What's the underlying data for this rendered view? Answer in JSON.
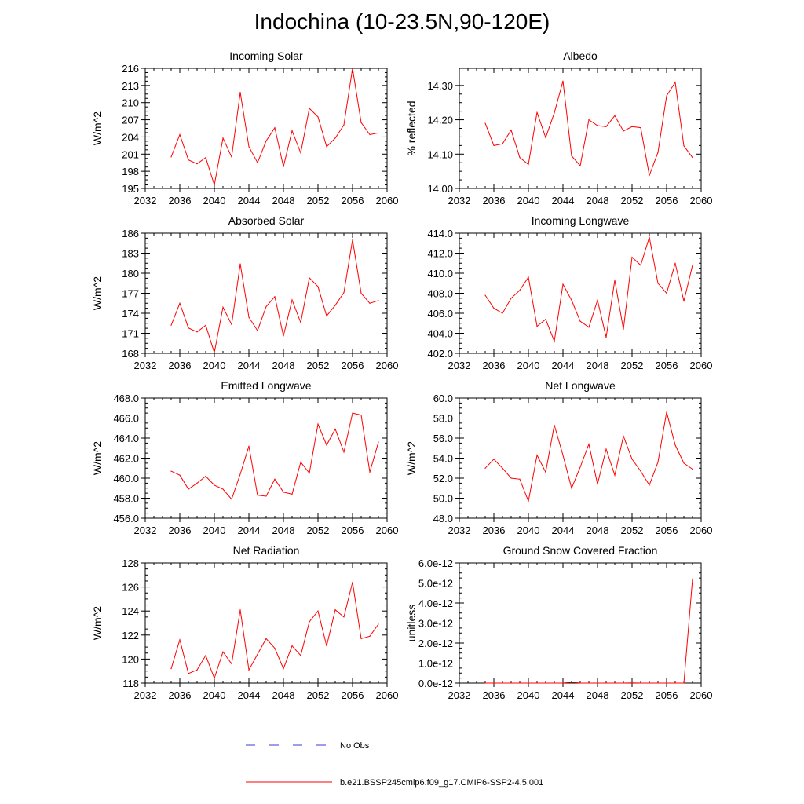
{
  "title": "Indochina (10-23.5N,90-120E)",
  "legend": {
    "obs_label": "No Obs",
    "model_label": "b.e21.BSSP245cmip6.f09_g17.CMIP6-SSP2-4.5.001",
    "obs_color": "#3b3bd9",
    "model_color": "#ff0000"
  },
  "chart_data": [
    {
      "type": "line",
      "title": "Incoming Solar",
      "ylabel": "W/m^2",
      "xlim": [
        2032,
        2060
      ],
      "ylim": [
        195,
        216
      ],
      "xticks": [
        2032,
        2036,
        2040,
        2044,
        2048,
        2052,
        2056,
        2060
      ],
      "yticks": [
        195,
        198,
        201,
        204,
        207,
        210,
        213,
        216
      ],
      "ytick_labels": [
        "195",
        "198",
        "201",
        "204",
        "207",
        "210",
        "213",
        "216"
      ],
      "series": [
        {
          "name": "b.e21.BSSP245cmip6.f09_g17.CMIP6-SSP2-4.5.001",
          "x": [
            2035,
            2036,
            2037,
            2038,
            2039,
            2040,
            2041,
            2042,
            2043,
            2044,
            2045,
            2046,
            2047,
            2048,
            2049,
            2050,
            2051,
            2052,
            2053,
            2054,
            2055,
            2056,
            2057,
            2058,
            2059
          ],
          "y": [
            200.5,
            204.4,
            200.0,
            199.3,
            200.4,
            195.6,
            203.8,
            200.5,
            211.8,
            202.3,
            199.5,
            203.3,
            205.6,
            198.8,
            205.1,
            201.2,
            209.0,
            207.5,
            202.3,
            203.8,
            206.1,
            216.0,
            206.5,
            204.4,
            204.7
          ]
        }
      ]
    },
    {
      "type": "line",
      "title": "Albedo",
      "ylabel": "% reflected",
      "xlim": [
        2032,
        2060
      ],
      "ylim": [
        14.0,
        14.35
      ],
      "xticks": [
        2032,
        2036,
        2040,
        2044,
        2048,
        2052,
        2056,
        2060
      ],
      "yticks": [
        14.0,
        14.1,
        14.2,
        14.3
      ],
      "ytick_labels": [
        "14.00",
        "14.10",
        "14.20",
        "14.30"
      ],
      "series": [
        {
          "name": "b.e21.BSSP245cmip6.f09_g17.CMIP6-SSP2-4.5.001",
          "x": [
            2035,
            2036,
            2037,
            2038,
            2039,
            2040,
            2041,
            2042,
            2043,
            2044,
            2045,
            2046,
            2047,
            2048,
            2049,
            2050,
            2051,
            2052,
            2053,
            2054,
            2055,
            2056,
            2057,
            2058,
            2059
          ],
          "y": [
            14.19,
            14.125,
            14.13,
            14.17,
            14.09,
            14.07,
            14.222,
            14.148,
            14.22,
            14.313,
            14.095,
            14.066,
            14.2,
            14.183,
            14.18,
            14.212,
            14.167,
            14.18,
            14.177,
            14.038,
            14.105,
            14.27,
            14.309,
            14.124,
            14.09
          ]
        }
      ]
    },
    {
      "type": "line",
      "title": "Absorbed Solar",
      "ylabel": "W/m^2",
      "xlim": [
        2032,
        2060
      ],
      "ylim": [
        168,
        186
      ],
      "xticks": [
        2032,
        2036,
        2040,
        2044,
        2048,
        2052,
        2056,
        2060
      ],
      "yticks": [
        168,
        171,
        174,
        177,
        180,
        183,
        186
      ],
      "ytick_labels": [
        "168",
        "171",
        "174",
        "177",
        "180",
        "183",
        "186"
      ],
      "series": [
        {
          "name": "b.e21.BSSP245cmip6.f09_g17.CMIP6-SSP2-4.5.001",
          "x": [
            2035,
            2036,
            2037,
            2038,
            2039,
            2040,
            2041,
            2042,
            2043,
            2044,
            2045,
            2046,
            2047,
            2048,
            2049,
            2050,
            2051,
            2052,
            2053,
            2054,
            2055,
            2056,
            2057,
            2058,
            2059
          ],
          "y": [
            172.2,
            175.5,
            171.8,
            171.2,
            172.2,
            168.1,
            174.9,
            172.3,
            181.4,
            173.4,
            171.4,
            175.0,
            176.5,
            170.6,
            176.0,
            172.6,
            179.3,
            178.0,
            173.6,
            175.2,
            177.1,
            185.0,
            177.0,
            175.5,
            175.9
          ]
        }
      ]
    },
    {
      "type": "line",
      "title": "Incoming Longwave",
      "ylabel": "",
      "xlim": [
        2032,
        2060
      ],
      "ylim": [
        402.0,
        414.0
      ],
      "xticks": [
        2032,
        2036,
        2040,
        2044,
        2048,
        2052,
        2056,
        2060
      ],
      "yticks": [
        402,
        404,
        406,
        408,
        410,
        412,
        414
      ],
      "ytick_labels": [
        "402.0",
        "404.0",
        "406.0",
        "408.0",
        "410.0",
        "412.0",
        "414.0"
      ],
      "series": [
        {
          "name": "b.e21.BSSP245cmip6.f09_g17.CMIP6-SSP2-4.5.001",
          "x": [
            2035,
            2036,
            2037,
            2038,
            2039,
            2040,
            2041,
            2042,
            2043,
            2044,
            2045,
            2046,
            2047,
            2048,
            2049,
            2050,
            2051,
            2052,
            2053,
            2054,
            2055,
            2056,
            2057,
            2058,
            2059
          ],
          "y": [
            407.8,
            406.5,
            406.0,
            407.5,
            408.3,
            409.6,
            404.7,
            405.4,
            403.2,
            408.9,
            407.3,
            405.2,
            404.6,
            407.3,
            403.6,
            409.3,
            404.4,
            411.6,
            410.8,
            413.6,
            409.0,
            408.0,
            411.0,
            407.2,
            410.8
          ]
        }
      ]
    },
    {
      "type": "line",
      "title": "Emitted Longwave",
      "ylabel": "W/m^2",
      "xlim": [
        2032,
        2060
      ],
      "ylim": [
        456.0,
        468.0
      ],
      "xticks": [
        2032,
        2036,
        2040,
        2044,
        2048,
        2052,
        2056,
        2060
      ],
      "yticks": [
        456,
        458,
        460,
        462,
        464,
        466,
        468
      ],
      "ytick_labels": [
        "456.0",
        "458.0",
        "460.0",
        "462.0",
        "464.0",
        "466.0",
        "468.0"
      ],
      "series": [
        {
          "name": "b.e21.BSSP245cmip6.f09_g17.CMIP6-SSP2-4.5.001",
          "x": [
            2035,
            2036,
            2037,
            2038,
            2039,
            2040,
            2041,
            2042,
            2043,
            2044,
            2045,
            2046,
            2047,
            2048,
            2049,
            2050,
            2051,
            2052,
            2053,
            2054,
            2055,
            2056,
            2057,
            2058,
            2059
          ],
          "y": [
            460.7,
            460.3,
            458.9,
            459.5,
            460.2,
            459.3,
            458.9,
            457.9,
            460.4,
            463.2,
            458.3,
            458.2,
            459.9,
            458.6,
            458.4,
            461.6,
            460.5,
            465.4,
            463.3,
            464.9,
            462.6,
            466.5,
            466.3,
            460.6,
            463.6
          ]
        }
      ]
    },
    {
      "type": "line",
      "title": "Net Longwave",
      "ylabel": "W/m^2",
      "xlim": [
        2032,
        2060
      ],
      "ylim": [
        48.0,
        60.0
      ],
      "xticks": [
        2032,
        2036,
        2040,
        2044,
        2048,
        2052,
        2056,
        2060
      ],
      "yticks": [
        48,
        50,
        52,
        54,
        56,
        58,
        60
      ],
      "ytick_labels": [
        "48.0",
        "50.0",
        "52.0",
        "54.0",
        "56.0",
        "58.0",
        "60.0"
      ],
      "series": [
        {
          "name": "b.e21.BSSP245cmip6.f09_g17.CMIP6-SSP2-4.5.001",
          "x": [
            2035,
            2036,
            2037,
            2038,
            2039,
            2040,
            2041,
            2042,
            2043,
            2044,
            2045,
            2046,
            2047,
            2048,
            2049,
            2050,
            2051,
            2052,
            2053,
            2054,
            2055,
            2056,
            2057,
            2058,
            2059
          ],
          "y": [
            53.0,
            53.9,
            53.0,
            52.0,
            51.9,
            49.7,
            54.3,
            52.6,
            57.3,
            54.3,
            51.0,
            53.1,
            55.4,
            51.4,
            54.9,
            52.3,
            56.2,
            53.9,
            52.7,
            51.3,
            53.6,
            58.6,
            55.3,
            53.5,
            52.9
          ]
        }
      ]
    },
    {
      "type": "line",
      "title": "Net Radiation",
      "ylabel": "W/m^2",
      "xlim": [
        2032,
        2060
      ],
      "ylim": [
        118,
        128
      ],
      "xticks": [
        2032,
        2036,
        2040,
        2044,
        2048,
        2052,
        2056,
        2060
      ],
      "yticks": [
        118,
        120,
        122,
        124,
        126,
        128
      ],
      "ytick_labels": [
        "118",
        "120",
        "122",
        "124",
        "126",
        "128"
      ],
      "series": [
        {
          "name": "b.e21.BSSP245cmip6.f09_g17.CMIP6-SSP2-4.5.001",
          "x": [
            2035,
            2036,
            2037,
            2038,
            2039,
            2040,
            2041,
            2042,
            2043,
            2044,
            2045,
            2046,
            2047,
            2048,
            2049,
            2050,
            2051,
            2052,
            2053,
            2054,
            2055,
            2056,
            2057,
            2058,
            2059
          ],
          "y": [
            119.2,
            121.6,
            118.8,
            119.1,
            120.3,
            118.4,
            120.6,
            119.6,
            124.1,
            119.1,
            120.4,
            121.7,
            120.9,
            119.2,
            121.1,
            120.3,
            123.1,
            124.0,
            121.1,
            124.1,
            123.5,
            126.4,
            121.7,
            121.9,
            122.9
          ]
        }
      ]
    },
    {
      "type": "line",
      "title": "Ground Snow Covered Fraction",
      "ylabel": "unitless",
      "xlim": [
        2032,
        2060
      ],
      "ylim": [
        0,
        6e-12
      ],
      "xticks": [
        2032,
        2036,
        2040,
        2044,
        2048,
        2052,
        2056,
        2060
      ],
      "yticks": [
        0,
        1e-12,
        2e-12,
        3e-12,
        4e-12,
        5e-12,
        6e-12
      ],
      "ytick_labels": [
        "0.0e-12",
        "1.0e-12",
        "2.0e-12",
        "3.0e-12",
        "4.0e-12",
        "5.0e-12",
        "6.0e-12"
      ],
      "series": [
        {
          "name": "b.e21.BSSP245cmip6.f09_g17.CMIP6-SSP2-4.5.001",
          "x": [
            2035,
            2036,
            2037,
            2038,
            2039,
            2040,
            2041,
            2042,
            2043,
            2044,
            2045,
            2046,
            2047,
            2048,
            2049,
            2050,
            2051,
            2052,
            2053,
            2054,
            2055,
            2056,
            2057,
            2058,
            2059
          ],
          "y": [
            0,
            0,
            0,
            0,
            0,
            0,
            0,
            0,
            0,
            0,
            5e-14,
            0,
            0,
            0,
            0,
            0,
            0,
            1e-14,
            0,
            0,
            0,
            0,
            0,
            0,
            5.2e-12
          ]
        }
      ]
    }
  ]
}
